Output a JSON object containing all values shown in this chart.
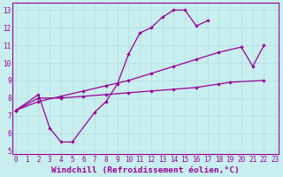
{
  "bg_color": "#c8eef0",
  "line_color": "#990099",
  "xlim": [
    -0.3,
    23.3
  ],
  "ylim": [
    4.8,
    13.4
  ],
  "xticks": [
    0,
    1,
    2,
    3,
    4,
    5,
    6,
    7,
    8,
    9,
    10,
    11,
    12,
    13,
    14,
    15,
    16,
    17,
    18,
    19,
    20,
    21,
    22,
    23
  ],
  "yticks": [
    5,
    6,
    7,
    8,
    9,
    10,
    11,
    12,
    13
  ],
  "xlabel": "Windchill (Refroidissement éolien,°C)",
  "tick_fontsize": 5.5,
  "label_fontsize": 6.8,
  "line1": [
    [
      0,
      7.3
    ],
    [
      2,
      8.2
    ],
    [
      3,
      6.3
    ],
    [
      4,
      5.5
    ],
    [
      5,
      5.5
    ],
    [
      7,
      7.2
    ],
    [
      8,
      7.8
    ],
    [
      9,
      8.8
    ],
    [
      10,
      10.5
    ],
    [
      11,
      11.7
    ],
    [
      12,
      12.0
    ],
    [
      13,
      12.6
    ],
    [
      14,
      13.0
    ],
    [
      15,
      13.0
    ],
    [
      16,
      12.1
    ],
    [
      17,
      12.4
    ]
  ],
  "line2": [
    [
      0,
      7.3
    ],
    [
      2,
      8.0
    ],
    [
      4,
      8.0
    ],
    [
      6,
      8.1
    ],
    [
      8,
      8.2
    ],
    [
      10,
      8.3
    ],
    [
      12,
      8.4
    ],
    [
      14,
      8.5
    ],
    [
      16,
      8.6
    ],
    [
      18,
      8.8
    ],
    [
      19,
      8.9
    ],
    [
      22,
      9.0
    ]
  ],
  "line3": [
    [
      0,
      7.3
    ],
    [
      2,
      7.8
    ],
    [
      4,
      8.1
    ],
    [
      6,
      8.4
    ],
    [
      8,
      8.7
    ],
    [
      10,
      9.0
    ],
    [
      12,
      9.4
    ],
    [
      14,
      9.8
    ],
    [
      16,
      10.2
    ],
    [
      18,
      10.6
    ],
    [
      20,
      10.9
    ],
    [
      21,
      9.8
    ],
    [
      22,
      11.0
    ]
  ]
}
